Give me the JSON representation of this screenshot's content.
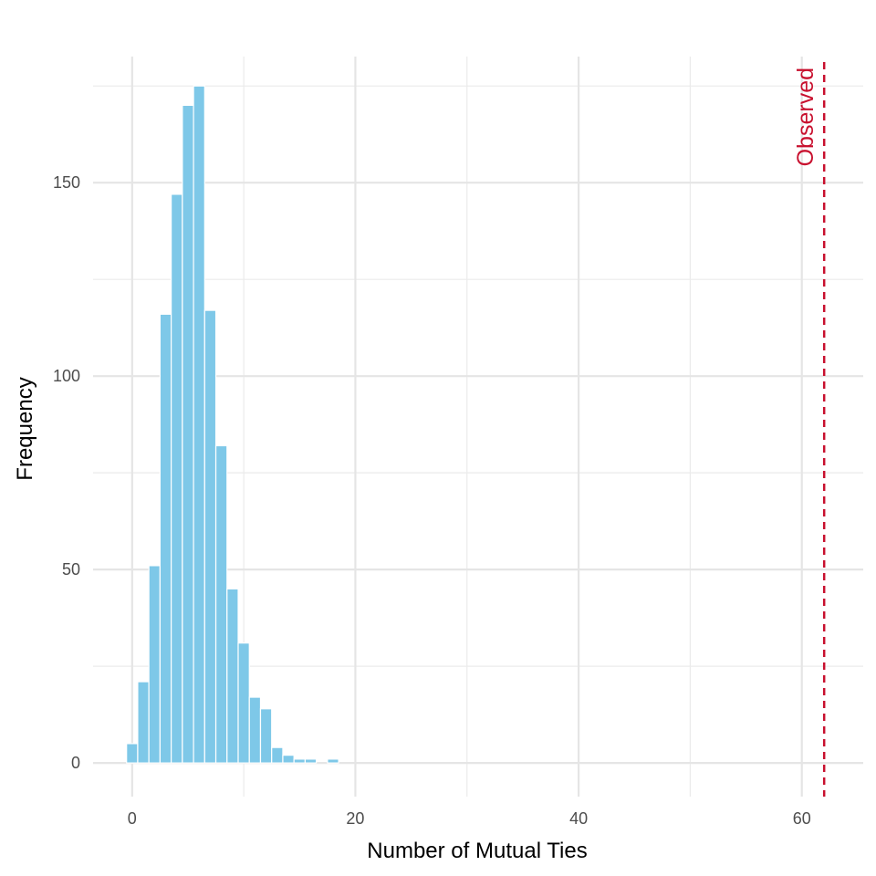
{
  "chart_data": {
    "type": "bar",
    "title": "",
    "xlabel": "Number of Mutual Ties",
    "ylabel": "Frequency",
    "xlim": [
      -3.5,
      65.5
    ],
    "ylim": [
      -8.7,
      182.6
    ],
    "x_ticks": [
      0,
      20,
      40,
      60
    ],
    "y_ticks": [
      0,
      50,
      100,
      150
    ],
    "grid": true,
    "bar_color": "#7EC8E8",
    "bins": [
      {
        "x": 0,
        "count": 5
      },
      {
        "x": 1,
        "count": 21
      },
      {
        "x": 2,
        "count": 51
      },
      {
        "x": 3,
        "count": 116
      },
      {
        "x": 4,
        "count": 147
      },
      {
        "x": 5,
        "count": 170
      },
      {
        "x": 6,
        "count": 175
      },
      {
        "x": 7,
        "count": 117
      },
      {
        "x": 8,
        "count": 82
      },
      {
        "x": 9,
        "count": 45
      },
      {
        "x": 10,
        "count": 31
      },
      {
        "x": 11,
        "count": 17
      },
      {
        "x": 12,
        "count": 14
      },
      {
        "x": 13,
        "count": 4
      },
      {
        "x": 14,
        "count": 2
      },
      {
        "x": 15,
        "count": 1
      },
      {
        "x": 16,
        "count": 1
      },
      {
        "x": 17,
        "count": 0
      },
      {
        "x": 18,
        "count": 1
      },
      {
        "x": 19,
        "count": 0
      },
      {
        "x": 20,
        "count": 0
      }
    ],
    "observed": {
      "value": 62,
      "label": "Observed",
      "color": "#C8102E",
      "line_style": "dashed"
    }
  }
}
